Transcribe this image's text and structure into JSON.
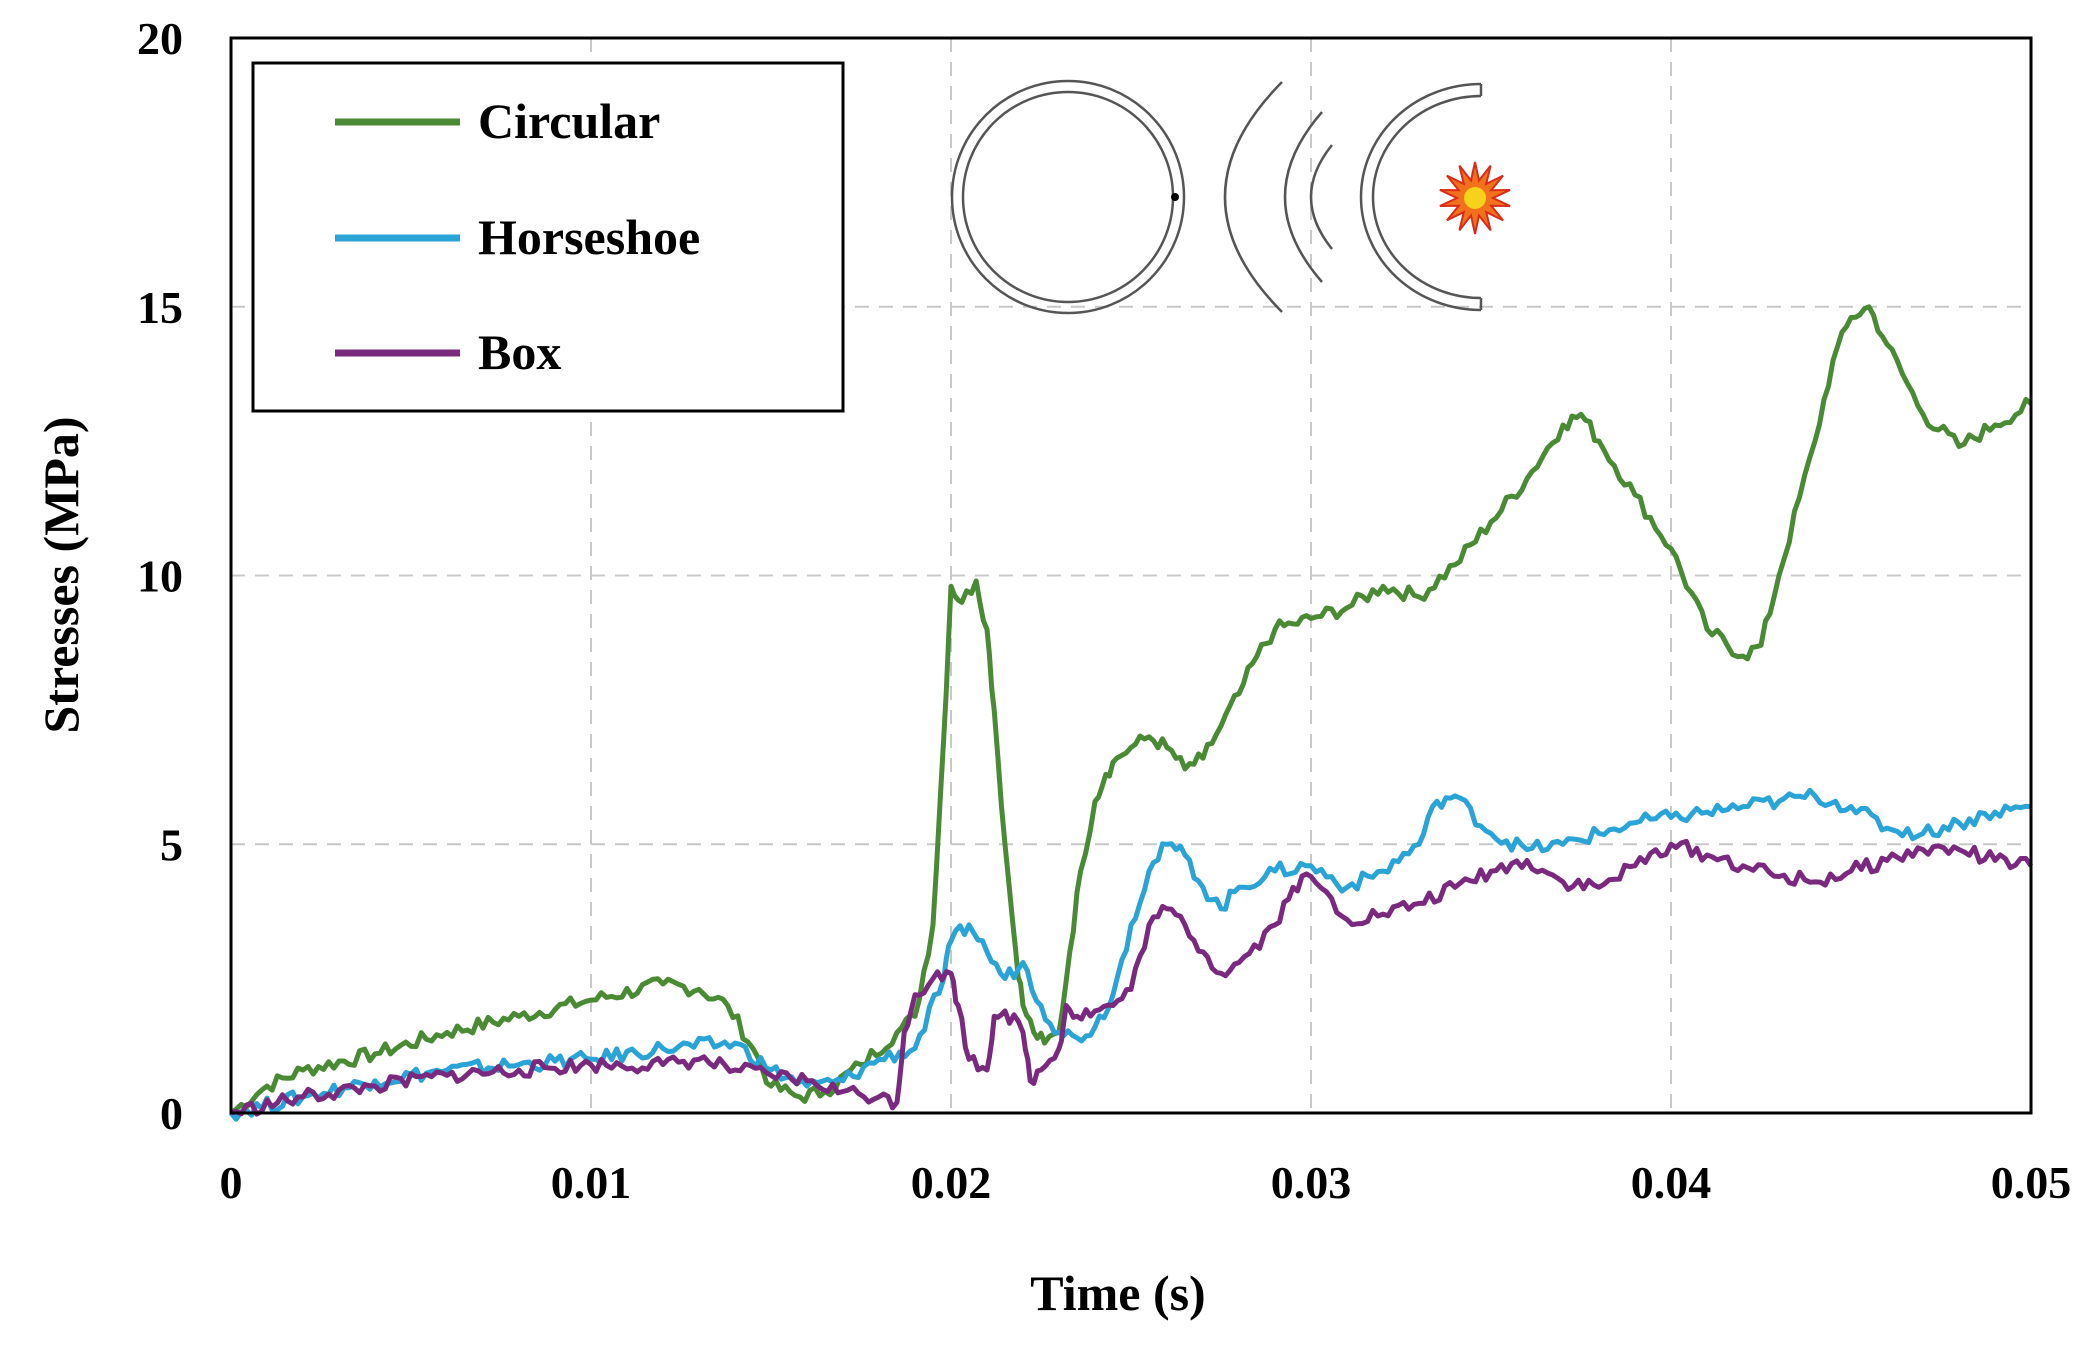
{
  "chart_data": {
    "type": "line",
    "xlabel": "Time (s)",
    "ylabel": "Stresses (MPa)",
    "xlim": [
      0,
      0.05
    ],
    "ylim": [
      0,
      20
    ],
    "xticks": [
      0,
      0.01,
      0.02,
      0.03,
      0.04,
      0.05
    ],
    "xtick_labels": [
      "0",
      "0.01",
      "0.02",
      "0.03",
      "0.04",
      "0.05"
    ],
    "yticks": [
      0,
      5,
      10,
      15,
      20
    ],
    "ytick_labels": [
      "0",
      "5",
      "10",
      "15",
      "20"
    ],
    "grid": true,
    "legend_position": "top-left",
    "series": [
      {
        "name": "Circular",
        "color": "#4a8a35",
        "x": [
          0,
          0.001,
          0.002,
          0.004,
          0.006,
          0.008,
          0.01,
          0.012,
          0.013,
          0.0138,
          0.0145,
          0.015,
          0.0158,
          0.0165,
          0.0175,
          0.0185,
          0.019,
          0.0195,
          0.0198,
          0.02,
          0.0203,
          0.0207,
          0.021,
          0.0212,
          0.0215,
          0.0218,
          0.022,
          0.0223,
          0.0226,
          0.023,
          0.0233,
          0.0236,
          0.024,
          0.0243,
          0.0246,
          0.025,
          0.0255,
          0.026,
          0.0265,
          0.027,
          0.0275,
          0.028,
          0.0285,
          0.029,
          0.0295,
          0.03,
          0.031,
          0.032,
          0.033,
          0.034,
          0.035,
          0.036,
          0.037,
          0.0375,
          0.038,
          0.039,
          0.04,
          0.041,
          0.042,
          0.0425,
          0.043,
          0.044,
          0.0445,
          0.045,
          0.0455,
          0.046,
          0.047,
          0.048,
          0.049,
          0.05
        ],
        "y": [
          0,
          0.5,
          0.8,
          1.1,
          1.5,
          1.8,
          2.1,
          2.4,
          2.3,
          2.0,
          1.2,
          0.5,
          0.3,
          0.4,
          0.9,
          1.5,
          1.8,
          3.5,
          7.0,
          9.8,
          9.5,
          9.9,
          9.0,
          7.5,
          5.0,
          3.0,
          2.0,
          1.5,
          1.3,
          1.5,
          3.0,
          4.5,
          5.8,
          6.3,
          6.6,
          6.8,
          7.0,
          6.8,
          6.4,
          6.6,
          7.2,
          7.8,
          8.5,
          9.0,
          9.1,
          9.2,
          9.4,
          9.8,
          9.6,
          10.2,
          11.0,
          11.8,
          12.8,
          13.0,
          12.5,
          11.5,
          10.5,
          9.0,
          8.5,
          8.7,
          10.0,
          12.5,
          14.0,
          14.8,
          15.0,
          14.3,
          13.0,
          12.4,
          12.8,
          13.2
        ]
      },
      {
        "name": "Horseshoe",
        "color": "#2aa3d6",
        "x": [
          0,
          0.002,
          0.004,
          0.006,
          0.008,
          0.01,
          0.012,
          0.014,
          0.015,
          0.016,
          0.017,
          0.018,
          0.019,
          0.0198,
          0.02,
          0.0205,
          0.021,
          0.0215,
          0.022,
          0.0225,
          0.023,
          0.0235,
          0.024,
          0.0245,
          0.025,
          0.0255,
          0.026,
          0.0265,
          0.027,
          0.0275,
          0.028,
          0.029,
          0.03,
          0.031,
          0.032,
          0.033,
          0.0335,
          0.034,
          0.035,
          0.036,
          0.037,
          0.038,
          0.039,
          0.04,
          0.041,
          0.042,
          0.043,
          0.044,
          0.045,
          0.046,
          0.047,
          0.048,
          0.049,
          0.05
        ],
        "y": [
          0,
          0.3,
          0.6,
          0.8,
          0.9,
          1.0,
          1.2,
          1.3,
          0.8,
          0.5,
          0.6,
          1.0,
          1.2,
          2.5,
          3.2,
          3.5,
          3.0,
          2.5,
          2.8,
          2.0,
          1.5,
          1.4,
          1.6,
          2.2,
          3.5,
          4.5,
          5.0,
          4.8,
          4.2,
          3.8,
          4.2,
          4.5,
          4.6,
          4.2,
          4.5,
          5.0,
          5.8,
          5.9,
          5.2,
          4.9,
          5.0,
          5.2,
          5.4,
          5.5,
          5.6,
          5.7,
          5.8,
          5.9,
          5.7,
          5.3,
          5.2,
          5.4,
          5.6,
          5.7
        ]
      },
      {
        "name": "Box",
        "color": "#7a2a7e",
        "x": [
          0,
          0.002,
          0.004,
          0.006,
          0.008,
          0.01,
          0.012,
          0.013,
          0.014,
          0.015,
          0.016,
          0.017,
          0.018,
          0.0185,
          0.0187,
          0.019,
          0.0195,
          0.02,
          0.0202,
          0.0205,
          0.021,
          0.0212,
          0.0215,
          0.022,
          0.0222,
          0.0225,
          0.023,
          0.0232,
          0.0235,
          0.024,
          0.0245,
          0.025,
          0.0255,
          0.026,
          0.0265,
          0.027,
          0.0275,
          0.028,
          0.029,
          0.0295,
          0.03,
          0.031,
          0.032,
          0.033,
          0.034,
          0.035,
          0.036,
          0.037,
          0.038,
          0.039,
          0.04,
          0.041,
          0.042,
          0.043,
          0.044,
          0.045,
          0.046,
          0.047,
          0.048,
          0.049,
          0.05
        ],
        "y": [
          0,
          0.3,
          0.5,
          0.7,
          0.8,
          0.9,
          0.9,
          1.0,
          0.8,
          0.7,
          0.6,
          0.4,
          0.3,
          0.2,
          1.5,
          2.2,
          2.5,
          2.6,
          2.0,
          1.0,
          0.8,
          1.8,
          1.9,
          1.5,
          0.6,
          0.8,
          1.2,
          2.0,
          1.8,
          1.9,
          2.0,
          2.3,
          3.5,
          3.8,
          3.5,
          3.0,
          2.6,
          2.8,
          3.5,
          4.2,
          4.4,
          3.6,
          3.7,
          3.9,
          4.2,
          4.5,
          4.7,
          4.3,
          4.2,
          4.6,
          5.0,
          4.8,
          4.6,
          4.4,
          4.3,
          4.5,
          4.7,
          4.9,
          4.9,
          4.7,
          4.6
        ]
      }
    ]
  }
}
